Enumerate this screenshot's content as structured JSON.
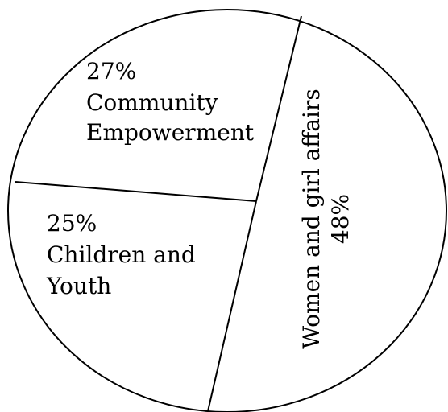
{
  "chart_data": {
    "type": "pie",
    "title": "",
    "slices": [
      {
        "label": "Community Empowerment",
        "value": 27,
        "value_label": "27%",
        "label_lines": [
          "Community",
          "Empowerment"
        ]
      },
      {
        "label": "Children and Youth",
        "value": 25,
        "value_label": "25%",
        "label_lines": [
          "Children and",
          "Youth"
        ]
      },
      {
        "label": "Women and girl affairs",
        "value": 48,
        "value_label": "48%",
        "label_lines": [
          "Women and girl affairs"
        ]
      }
    ],
    "fill_color": "#ffffff",
    "stroke_color": "#000000",
    "legend": "none"
  }
}
